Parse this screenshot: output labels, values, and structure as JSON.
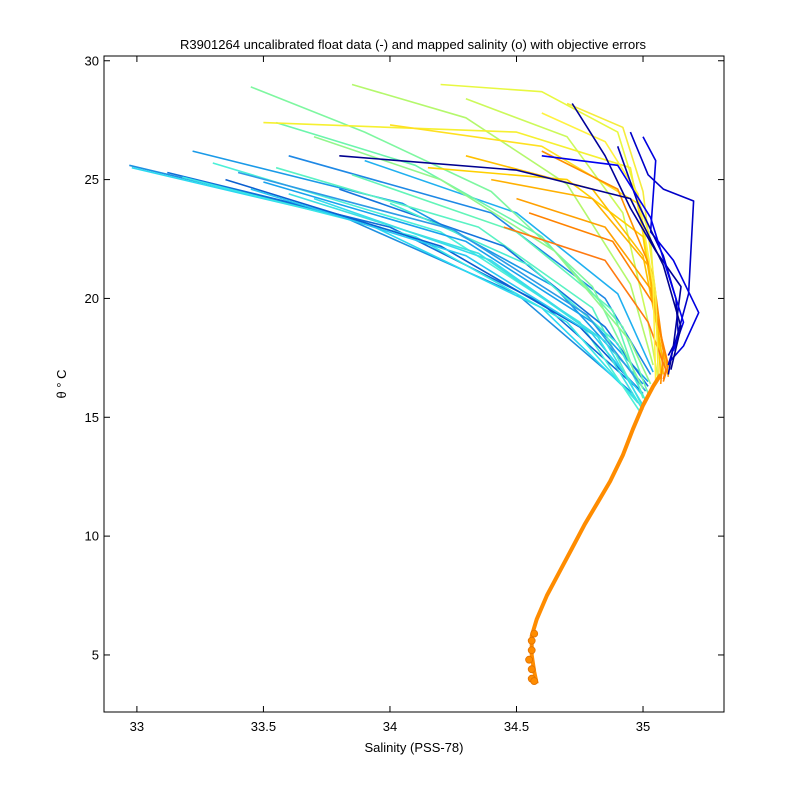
{
  "chart_data": {
    "type": "line",
    "title": "R3901264 uncalibrated float data (-) and mapped salinity (o) with objective errors",
    "xlabel": "Salinity (PSS-78)",
    "ylabel": "θ ° C",
    "xlim": [
      32.87,
      35.32
    ],
    "ylim": [
      2.6,
      30.2
    ],
    "xticks": [
      33,
      33.5,
      34,
      34.5,
      35
    ],
    "xtick_labels": [
      "33",
      "33.5",
      "34",
      "34.5",
      "35"
    ],
    "yticks": [
      5,
      10,
      15,
      20,
      25,
      30
    ],
    "ytick_labels": [
      "5",
      "10",
      "15",
      "20",
      "25",
      "30"
    ],
    "grid": false,
    "colormap": [
      "#00008f",
      "#0000ff",
      "#0080ff",
      "#00ffff",
      "#80ff80",
      "#ffff00",
      "#ff8000",
      "#ff0000"
    ],
    "deep_profile": {
      "color": "#ff8c00",
      "points": [
        [
          34.58,
          3.8
        ],
        [
          34.57,
          4.3
        ],
        [
          34.56,
          5.0
        ],
        [
          34.56,
          5.8
        ],
        [
          34.58,
          6.5
        ],
        [
          34.62,
          7.5
        ],
        [
          34.67,
          8.5
        ],
        [
          34.72,
          9.5
        ],
        [
          34.77,
          10.5
        ],
        [
          34.82,
          11.4
        ],
        [
          34.87,
          12.3
        ],
        [
          34.92,
          13.4
        ],
        [
          34.96,
          14.5
        ],
        [
          35.0,
          15.5
        ],
        [
          35.04,
          16.3
        ],
        [
          35.07,
          16.8
        ]
      ]
    },
    "mapped_markers": {
      "color": "#ff8c00",
      "points": [
        [
          34.56,
          4.0
        ],
        [
          34.56,
          4.4
        ],
        [
          34.55,
          4.8
        ],
        [
          34.56,
          5.2
        ],
        [
          34.56,
          5.6
        ],
        [
          34.57,
          5.9
        ],
        [
          34.57,
          3.9
        ]
      ]
    },
    "series": [
      {
        "color": "#1d8fe0",
        "points": [
          [
            32.97,
            25.6
          ],
          [
            33.8,
            23.5
          ],
          [
            34.5,
            20.2
          ],
          [
            34.96,
            16.0
          ]
        ]
      },
      {
        "color": "#2bd9f0",
        "points": [
          [
            32.98,
            25.5
          ],
          [
            33.9,
            23.2
          ],
          [
            34.6,
            19.6
          ],
          [
            34.97,
            15.8
          ]
        ]
      },
      {
        "color": "#0f6fd8",
        "points": [
          [
            33.12,
            25.3
          ],
          [
            34.0,
            23.0
          ],
          [
            34.6,
            19.8
          ],
          [
            34.98,
            16.2
          ]
        ]
      },
      {
        "color": "#3ae6e6",
        "points": [
          [
            33.18,
            25.1
          ],
          [
            34.1,
            22.6
          ],
          [
            34.7,
            19.0
          ],
          [
            34.98,
            15.6
          ]
        ]
      },
      {
        "color": "#1a9ae8",
        "points": [
          [
            33.22,
            26.2
          ],
          [
            34.05,
            24.0
          ],
          [
            34.65,
            20.5
          ],
          [
            35.0,
            16.4
          ]
        ]
      },
      {
        "color": "#4cf0d8",
        "points": [
          [
            33.3,
            25.7
          ],
          [
            34.2,
            22.8
          ],
          [
            34.75,
            19.0
          ],
          [
            34.99,
            15.2
          ]
        ]
      },
      {
        "color": "#0b5fd0",
        "points": [
          [
            33.35,
            25.0
          ],
          [
            34.2,
            22.2
          ],
          [
            34.75,
            18.8
          ],
          [
            35.0,
            16.0
          ]
        ]
      },
      {
        "color": "#29c8f2",
        "points": [
          [
            33.45,
            24.6
          ],
          [
            34.3,
            21.8
          ],
          [
            34.8,
            18.5
          ],
          [
            35.0,
            15.9
          ]
        ]
      },
      {
        "color": "#18a2ee",
        "points": [
          [
            33.5,
            24.9
          ],
          [
            34.3,
            22.4
          ],
          [
            34.8,
            19.0
          ],
          [
            35.02,
            16.5
          ]
        ]
      },
      {
        "color": "#5af2c4",
        "points": [
          [
            33.55,
            25.5
          ],
          [
            34.35,
            23.0
          ],
          [
            34.8,
            19.6
          ],
          [
            35.0,
            15.4
          ]
        ]
      },
      {
        "color": "#1e88e5",
        "points": [
          [
            33.6,
            26.0
          ],
          [
            34.4,
            23.6
          ],
          [
            34.85,
            20.0
          ],
          [
            35.03,
            16.8
          ]
        ]
      },
      {
        "color": "#36dcec",
        "points": [
          [
            33.7,
            24.2
          ],
          [
            34.4,
            21.6
          ],
          [
            34.85,
            18.2
          ],
          [
            35.0,
            15.5
          ]
        ]
      },
      {
        "color": "#1474dd",
        "points": [
          [
            33.8,
            24.6
          ],
          [
            34.45,
            22.2
          ],
          [
            34.85,
            18.8
          ],
          [
            35.02,
            16.3
          ]
        ]
      },
      {
        "color": "#62f5b8",
        "points": [
          [
            33.85,
            25.2
          ],
          [
            34.5,
            22.8
          ],
          [
            34.88,
            19.5
          ],
          [
            35.0,
            15.8
          ]
        ]
      },
      {
        "color": "#20b0f0",
        "points": [
          [
            33.9,
            25.8
          ],
          [
            34.5,
            23.6
          ],
          [
            34.9,
            20.2
          ],
          [
            35.04,
            16.9
          ]
        ]
      },
      {
        "color": "#48ecd2",
        "points": [
          [
            34.0,
            24.0
          ],
          [
            34.55,
            21.4
          ],
          [
            34.9,
            18.1
          ],
          [
            35.01,
            15.7
          ]
        ]
      },
      {
        "color": "#2e9be6",
        "points": [
          [
            33.4,
            25.3
          ],
          [
            34.25,
            22.9
          ],
          [
            34.78,
            19.3
          ],
          [
            35.01,
            16.1
          ]
        ]
      },
      {
        "color": "#3ee0e2",
        "points": [
          [
            33.6,
            24.4
          ],
          [
            34.35,
            21.9
          ],
          [
            34.82,
            18.4
          ],
          [
            35.0,
            15.3
          ]
        ]
      },
      {
        "color": "#7ef7a0",
        "points": [
          [
            33.45,
            28.9
          ],
          [
            33.9,
            27.0
          ],
          [
            34.4,
            24.5
          ],
          [
            34.8,
            20.5
          ],
          [
            35.0,
            16.2
          ]
        ]
      },
      {
        "color": "#6cf5ac",
        "points": [
          [
            33.55,
            27.4
          ],
          [
            34.1,
            25.6
          ],
          [
            34.6,
            22.6
          ],
          [
            34.92,
            18.8
          ],
          [
            35.02,
            16.0
          ]
        ]
      },
      {
        "color": "#92f78c",
        "points": [
          [
            33.7,
            26.8
          ],
          [
            34.2,
            25.0
          ],
          [
            34.65,
            22.0
          ],
          [
            34.95,
            18.2
          ],
          [
            35.03,
            16.4
          ]
        ]
      },
      {
        "color": "#b4f86c",
        "points": [
          [
            33.85,
            29.0
          ],
          [
            34.3,
            27.6
          ],
          [
            34.7,
            24.8
          ],
          [
            34.95,
            20.6
          ],
          [
            35.04,
            17.2
          ]
        ]
      },
      {
        "color": "#ccf95a",
        "points": [
          [
            34.3,
            28.4
          ],
          [
            34.7,
            26.8
          ],
          [
            34.92,
            23.6
          ],
          [
            35.02,
            19.0
          ],
          [
            35.06,
            16.6
          ]
        ]
      },
      {
        "color": "#e8f840",
        "points": [
          [
            34.2,
            29.0
          ],
          [
            34.6,
            28.7
          ],
          [
            34.9,
            27.0
          ],
          [
            35.03,
            22.5
          ],
          [
            35.06,
            17.8
          ]
        ]
      },
      {
        "color": "#f6f030",
        "points": [
          [
            33.5,
            27.4
          ],
          [
            34.5,
            27.0
          ],
          [
            34.95,
            25.5
          ],
          [
            35.05,
            20.0
          ],
          [
            35.07,
            16.9
          ]
        ]
      },
      {
        "color": "#ffe020",
        "points": [
          [
            34.0,
            27.3
          ],
          [
            34.6,
            26.4
          ],
          [
            34.98,
            24.0
          ],
          [
            35.05,
            19.5
          ],
          [
            35.08,
            17.0
          ]
        ]
      },
      {
        "color": "#ffd000",
        "points": [
          [
            34.15,
            25.5
          ],
          [
            34.7,
            25.0
          ],
          [
            35.0,
            22.6
          ],
          [
            35.06,
            18.6
          ],
          [
            35.07,
            16.6
          ]
        ]
      },
      {
        "color": "#ffc000",
        "points": [
          [
            34.3,
            26.0
          ],
          [
            34.8,
            24.6
          ],
          [
            35.0,
            21.8
          ],
          [
            35.07,
            18.0
          ],
          [
            35.08,
            16.8
          ]
        ]
      },
      {
        "color": "#ffb000",
        "points": [
          [
            34.4,
            25.0
          ],
          [
            34.8,
            24.2
          ],
          [
            35.02,
            21.4
          ],
          [
            35.08,
            17.8
          ],
          [
            35.09,
            16.9
          ]
        ]
      },
      {
        "color": "#ffa000",
        "points": [
          [
            34.5,
            24.2
          ],
          [
            34.85,
            23.0
          ],
          [
            35.03,
            20.4
          ],
          [
            35.09,
            17.5
          ],
          [
            35.1,
            16.7
          ]
        ]
      },
      {
        "color": "#ff9000",
        "points": [
          [
            34.6,
            26.2
          ],
          [
            34.9,
            24.6
          ],
          [
            35.04,
            21.0
          ],
          [
            35.08,
            17.8
          ],
          [
            35.07,
            16.4
          ]
        ]
      },
      {
        "color": "#ff8200",
        "points": [
          [
            34.55,
            23.6
          ],
          [
            34.88,
            22.4
          ],
          [
            35.04,
            19.8
          ],
          [
            35.1,
            17.2
          ],
          [
            35.08,
            16.5
          ]
        ]
      },
      {
        "color": "#ff7a10",
        "points": [
          [
            34.45,
            23.0
          ],
          [
            34.85,
            21.6
          ],
          [
            35.02,
            19.0
          ],
          [
            35.09,
            17.0
          ],
          [
            35.08,
            16.6
          ]
        ]
      },
      {
        "color": "#f5ec3c",
        "points": [
          [
            34.7,
            28.2
          ],
          [
            34.92,
            27.2
          ],
          [
            35.0,
            24.5
          ],
          [
            35.05,
            20.2
          ],
          [
            35.06,
            16.8
          ]
        ]
      },
      {
        "color": "#fff240",
        "points": [
          [
            34.6,
            27.8
          ],
          [
            34.85,
            26.6
          ],
          [
            34.98,
            24.4
          ],
          [
            35.04,
            20.6
          ],
          [
            35.05,
            16.5
          ]
        ]
      },
      {
        "color": "#00009a",
        "points": [
          [
            34.72,
            28.2
          ],
          [
            34.85,
            26.0
          ],
          [
            34.95,
            23.8
          ],
          [
            35.05,
            22.0
          ],
          [
            35.15,
            20.5
          ],
          [
            35.12,
            18.0
          ],
          [
            35.1,
            16.8
          ]
        ]
      },
      {
        "color": "#0000c8",
        "points": [
          [
            34.95,
            27.0
          ],
          [
            35.02,
            25.2
          ],
          [
            35.08,
            24.6
          ],
          [
            35.2,
            24.1
          ],
          [
            35.18,
            20.2
          ],
          [
            35.14,
            18.6
          ],
          [
            35.1,
            17.2
          ]
        ]
      },
      {
        "color": "#0000e0",
        "points": [
          [
            35.0,
            26.8
          ],
          [
            35.05,
            25.8
          ],
          [
            35.03,
            22.8
          ],
          [
            35.12,
            21.6
          ],
          [
            35.22,
            19.4
          ],
          [
            35.16,
            18.0
          ],
          [
            35.11,
            17.4
          ]
        ]
      },
      {
        "color": "#0000b0",
        "points": [
          [
            34.9,
            26.4
          ],
          [
            34.98,
            24.0
          ],
          [
            35.08,
            21.8
          ],
          [
            35.13,
            20.0
          ],
          [
            35.14,
            18.4
          ],
          [
            35.1,
            17.6
          ]
        ]
      },
      {
        "color": "#0000f0",
        "points": [
          [
            34.6,
            26.0
          ],
          [
            34.9,
            25.6
          ],
          [
            35.03,
            23.4
          ],
          [
            35.1,
            21.0
          ],
          [
            35.16,
            19.0
          ],
          [
            35.12,
            17.8
          ]
        ]
      },
      {
        "color": "#00008f",
        "points": [
          [
            33.8,
            26.0
          ],
          [
            34.5,
            25.4
          ],
          [
            34.95,
            24.2
          ],
          [
            35.08,
            21.4
          ],
          [
            35.15,
            18.8
          ],
          [
            35.11,
            17.0
          ]
        ]
      }
    ]
  }
}
